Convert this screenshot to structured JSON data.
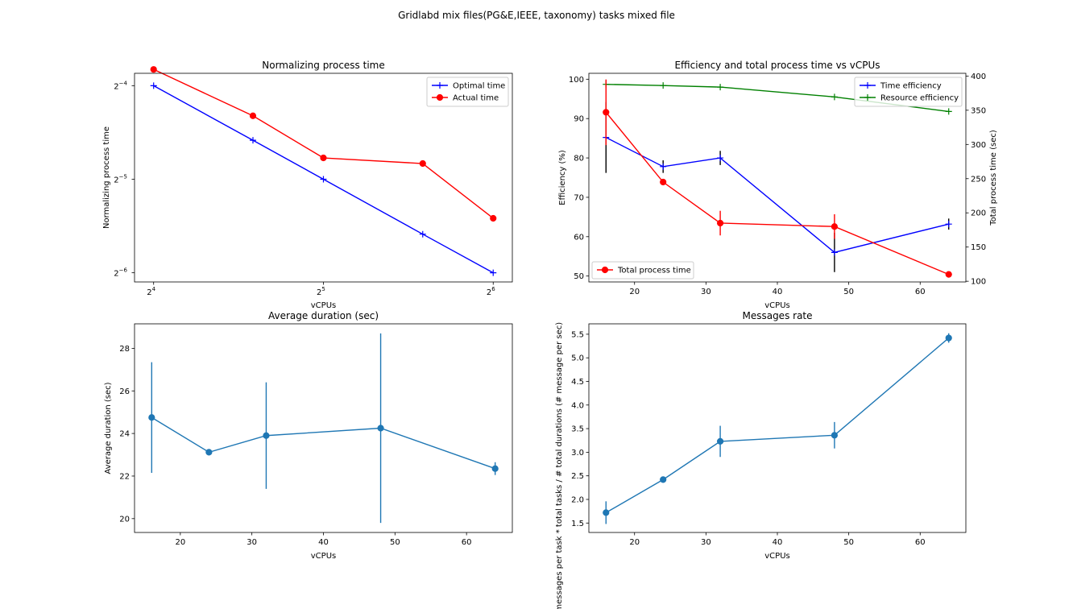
{
  "figure": {
    "suptitle": "Gridlabd mix files(PG&E,IEEE, taxonomy) tasks mixed file"
  },
  "chart_data": [
    {
      "id": "normalizing",
      "type": "line",
      "title": "Normalizing process time",
      "xlabel": "vCPUs",
      "ylabel": "Normalizing process time",
      "xscale": "log2",
      "yscale": "log2",
      "xlim": [
        14.8,
        69.2
      ],
      "ylim": [
        0.0146,
        0.0685
      ],
      "xticks": [
        16,
        32,
        64
      ],
      "xtick_labels": [
        [
          "2",
          "4"
        ],
        [
          "2",
          "5"
        ],
        [
          "2",
          "6"
        ]
      ],
      "yticks": [
        0.015625,
        0.03125,
        0.0625
      ],
      "ytick_labels": [
        [
          "2",
          "−6"
        ],
        [
          "2",
          "−5"
        ],
        [
          "2",
          "−4"
        ]
      ],
      "legend": "top-right",
      "grid": false,
      "series": [
        {
          "name": "Optimal time",
          "color": "#0000ff",
          "marker": "plus",
          "x": [
            16,
            24,
            32,
            48,
            64
          ],
          "y": [
            0.0625,
            0.0417,
            0.03125,
            0.0208,
            0.015625
          ]
        },
        {
          "name": "Actual time",
          "color": "#ff0000",
          "marker": "circle",
          "x": [
            16,
            24,
            32,
            48,
            64
          ],
          "y": [
            0.0705,
            0.05,
            0.0366,
            0.0351,
            0.0234
          ]
        }
      ]
    },
    {
      "id": "efficiency",
      "type": "line",
      "title": "Efficiency and total process time vs vCPUs",
      "xlabel": "vCPUs",
      "ylabel": "Efficiency (%)",
      "ylabel_right": "Total process time (sec)",
      "xlim": [
        13.6,
        66.4
      ],
      "ylim": [
        48.5,
        101.5
      ],
      "ylim_right": [
        99,
        404
      ],
      "xticks": [
        20,
        30,
        40,
        50,
        60
      ],
      "yticks": [
        50,
        60,
        70,
        80,
        90,
        100
      ],
      "yticks_right": [
        100,
        150,
        200,
        250,
        300,
        350,
        400
      ],
      "legend": "top-right",
      "legend_right": "bottom-left",
      "grid": false,
      "series": [
        {
          "name": "Time efficiency",
          "color": "#0000ff",
          "marker": "plus",
          "axis": "left",
          "x": [
            16,
            24,
            32,
            48,
            64
          ],
          "y": [
            85.2,
            77.8,
            80,
            56,
            63.2
          ],
          "yerr": [
            9,
            1.6,
            1.8,
            5,
            1.4
          ]
        },
        {
          "name": "Resource efficiency",
          "color": "#008000",
          "marker": "plus",
          "axis": "left",
          "x": [
            16,
            24,
            32,
            48,
            64
          ],
          "y": [
            98.7,
            98.4,
            98.0,
            95.5,
            91.8
          ]
        },
        {
          "name": "Total process time",
          "color": "#ff0000",
          "marker": "circle",
          "axis": "right",
          "x": [
            16,
            24,
            32,
            48,
            64
          ],
          "y": [
            347,
            245,
            185,
            180,
            110
          ],
          "yerr": [
            48,
            0,
            18,
            18,
            0
          ]
        }
      ]
    },
    {
      "id": "duration",
      "type": "line",
      "title": "Average duration (sec)",
      "xlabel": "vCPUs",
      "ylabel": "Average duration (sec)",
      "xlim": [
        13.6,
        66.4
      ],
      "ylim": [
        19.35,
        29.15
      ],
      "xticks": [
        20,
        30,
        40,
        50,
        60
      ],
      "yticks": [
        20,
        22,
        24,
        26,
        28
      ],
      "grid": false,
      "series": [
        {
          "name": "",
          "color": "#1f77b4",
          "marker": "circle",
          "x": [
            16,
            24,
            32,
            48,
            64
          ],
          "y": [
            24.75,
            23.12,
            23.9,
            24.25,
            22.35
          ],
          "yerr": [
            2.6,
            0,
            2.5,
            4.45,
            0.3
          ]
        }
      ]
    },
    {
      "id": "messages",
      "type": "line",
      "title": "Messages rate",
      "xlabel": "vCPUs",
      "ylabel": "# messages per task * total tasks / # total durations (# message per sec)",
      "xlim": [
        13.6,
        66.4
      ],
      "ylim": [
        1.3,
        5.72
      ],
      "xticks": [
        20,
        30,
        40,
        50,
        60
      ],
      "yticks": [
        1.5,
        2.0,
        2.5,
        3.0,
        3.5,
        4.0,
        4.5,
        5.0,
        5.5
      ],
      "ytick_labels": [
        "1.5",
        "2.0",
        "2.5",
        "3.0",
        "3.5",
        "4.0",
        "4.5",
        "5.0",
        "5.5"
      ],
      "grid": false,
      "series": [
        {
          "name": "",
          "color": "#1f77b4",
          "marker": "circle",
          "x": [
            16,
            24,
            32,
            48,
            64
          ],
          "y": [
            1.72,
            2.42,
            3.23,
            3.36,
            5.42
          ],
          "yerr": [
            0.24,
            0,
            0.33,
            0.28,
            0.1
          ]
        }
      ]
    }
  ]
}
